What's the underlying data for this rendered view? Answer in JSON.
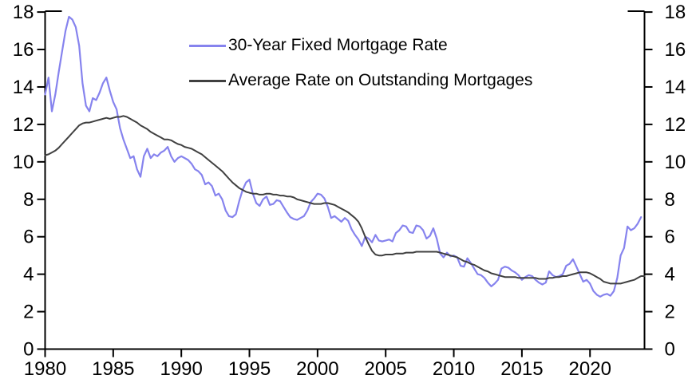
{
  "chart_data": {
    "type": "line",
    "title": "",
    "grid": false,
    "legend_position": "top-center",
    "x_axis": {
      "min": 1980,
      "max": 2024,
      "tick_years": [
        1980,
        1985,
        1990,
        1995,
        2000,
        2005,
        2010,
        2015,
        2020
      ]
    },
    "y_axis": {
      "min": 0,
      "max": 18,
      "tick_step": 2,
      "ticks": [
        0,
        2,
        4,
        6,
        8,
        10,
        12,
        14,
        16,
        18
      ],
      "sides": [
        "left",
        "right"
      ]
    },
    "x_start": 1980,
    "x_step": 0.25,
    "series": [
      {
        "name": "30-Year Fixed Mortgage Rate",
        "color": "#8683EE",
        "values": [
          13.6,
          14.5,
          12.7,
          13.6,
          14.8,
          15.9,
          17.0,
          17.75,
          17.6,
          17.2,
          16.2,
          14.2,
          13.0,
          12.7,
          13.4,
          13.3,
          13.7,
          14.2,
          14.5,
          13.8,
          13.2,
          12.8,
          11.8,
          11.2,
          10.7,
          10.2,
          10.3,
          9.6,
          9.2,
          10.3,
          10.7,
          10.2,
          10.4,
          10.3,
          10.5,
          10.6,
          10.8,
          10.3,
          10.0,
          10.2,
          10.3,
          10.2,
          10.1,
          9.9,
          9.6,
          9.5,
          9.3,
          8.8,
          8.9,
          8.7,
          8.2,
          8.3,
          8.0,
          7.4,
          7.1,
          7.05,
          7.2,
          7.9,
          8.5,
          8.9,
          9.05,
          8.3,
          7.8,
          7.65,
          8.0,
          8.15,
          7.7,
          7.75,
          7.95,
          7.9,
          7.6,
          7.3,
          7.05,
          6.95,
          6.9,
          7.0,
          7.1,
          7.4,
          7.85,
          8.05,
          8.3,
          8.25,
          8.05,
          7.6,
          7.0,
          7.1,
          6.95,
          6.8,
          7.0,
          6.85,
          6.4,
          6.1,
          5.85,
          5.5,
          6.0,
          5.9,
          5.7,
          6.1,
          5.8,
          5.75,
          5.8,
          5.85,
          5.75,
          6.2,
          6.35,
          6.6,
          6.55,
          6.25,
          6.2,
          6.6,
          6.55,
          6.35,
          5.9,
          6.05,
          6.45,
          5.9,
          5.1,
          4.9,
          5.15,
          4.95,
          5.0,
          4.9,
          4.45,
          4.4,
          4.85,
          4.6,
          4.3,
          4.0,
          3.95,
          3.8,
          3.55,
          3.35,
          3.5,
          3.7,
          4.3,
          4.4,
          4.35,
          4.2,
          4.1,
          3.95,
          3.7,
          3.85,
          3.95,
          3.9,
          3.7,
          3.55,
          3.45,
          3.55,
          4.15,
          3.95,
          3.85,
          3.9,
          4.0,
          4.45,
          4.55,
          4.8,
          4.4,
          4.0,
          3.6,
          3.7,
          3.5,
          3.1,
          2.9,
          2.8,
          2.9,
          2.95,
          2.85,
          3.1,
          3.8,
          5.0,
          5.4,
          6.55,
          6.35,
          6.45,
          6.7,
          7.05
        ]
      },
      {
        "name": "Average Rate on Outstanding Mortgages",
        "color": "#404040",
        "values": [
          10.35,
          10.4,
          10.5,
          10.6,
          10.75,
          10.95,
          11.15,
          11.35,
          11.55,
          11.75,
          11.95,
          12.05,
          12.1,
          12.1,
          12.15,
          12.2,
          12.25,
          12.3,
          12.35,
          12.3,
          12.35,
          12.4,
          12.4,
          12.45,
          12.4,
          12.3,
          12.2,
          12.1,
          11.95,
          11.85,
          11.75,
          11.6,
          11.5,
          11.4,
          11.3,
          11.2,
          11.2,
          11.15,
          11.05,
          10.95,
          10.9,
          10.8,
          10.75,
          10.7,
          10.6,
          10.5,
          10.4,
          10.25,
          10.1,
          9.95,
          9.8,
          9.65,
          9.5,
          9.3,
          9.1,
          8.9,
          8.75,
          8.6,
          8.5,
          8.4,
          8.35,
          8.3,
          8.3,
          8.25,
          8.25,
          8.3,
          8.3,
          8.25,
          8.25,
          8.2,
          8.2,
          8.15,
          8.15,
          8.1,
          8.0,
          7.95,
          7.9,
          7.85,
          7.8,
          7.75,
          7.75,
          7.75,
          7.8,
          7.8,
          7.75,
          7.7,
          7.6,
          7.5,
          7.4,
          7.3,
          7.15,
          7.0,
          6.8,
          6.45,
          6.0,
          5.6,
          5.25,
          5.05,
          5.0,
          5.0,
          5.05,
          5.05,
          5.05,
          5.1,
          5.1,
          5.1,
          5.15,
          5.15,
          5.15,
          5.2,
          5.2,
          5.2,
          5.2,
          5.2,
          5.2,
          5.2,
          5.15,
          5.1,
          5.05,
          5.0,
          4.95,
          4.9,
          4.8,
          4.7,
          4.65,
          4.55,
          4.5,
          4.4,
          4.3,
          4.2,
          4.15,
          4.05,
          4.0,
          3.95,
          3.9,
          3.85,
          3.85,
          3.85,
          3.85,
          3.8,
          3.8,
          3.8,
          3.8,
          3.8,
          3.8,
          3.75,
          3.75,
          3.75,
          3.8,
          3.8,
          3.85,
          3.85,
          3.9,
          3.9,
          3.95,
          4.0,
          4.05,
          4.1,
          4.1,
          4.1,
          4.05,
          3.95,
          3.85,
          3.75,
          3.6,
          3.55,
          3.5,
          3.5,
          3.5,
          3.5,
          3.55,
          3.6,
          3.65,
          3.7,
          3.8,
          3.9,
          3.9
        ]
      }
    ]
  }
}
